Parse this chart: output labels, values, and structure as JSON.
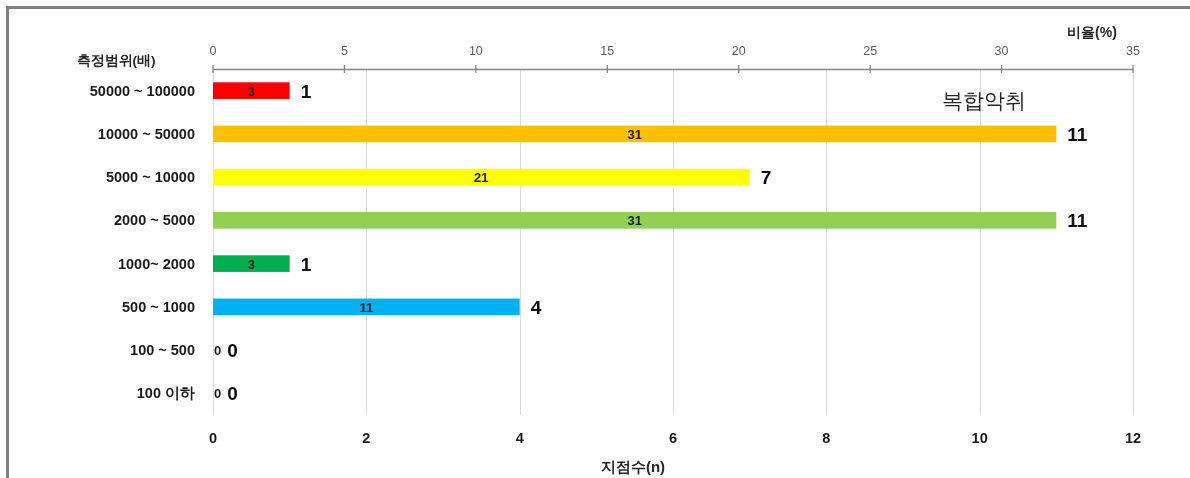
{
  "chart_data": {
    "type": "bar",
    "orientation": "horizontal",
    "ylabel": "측정범위(배)",
    "xlabel": "지점수(n)",
    "x2label": "비율(%)",
    "categories": [
      "50000 ~ 100000",
      "10000 ~ 50000",
      "5000 ~ 10000",
      "2000 ~ 5000",
      "1000~ 2000",
      "500 ~ 1000",
      "100 ~ 500",
      "100 이하"
    ],
    "values": [
      1,
      11,
      7,
      11,
      1,
      4,
      0,
      0
    ],
    "colors": [
      "#ff0000",
      "#ffc000",
      "#ffff00",
      "#92d050",
      "#00b050",
      "#00b0f0",
      "#0070c0",
      "#7030a0"
    ],
    "data_labels": true,
    "xlim": [
      0,
      12
    ],
    "xticks": [
      0,
      2,
      4,
      6,
      8,
      10,
      12
    ],
    "x2lim": [
      0,
      35
    ],
    "x2ticks": [
      0,
      5,
      10,
      15,
      20,
      25,
      30,
      35
    ],
    "grid": "x",
    "annotations": [
      "복합악취",
      "3",
      "31",
      "21",
      "31",
      "3",
      "11",
      "0",
      "0"
    ]
  }
}
